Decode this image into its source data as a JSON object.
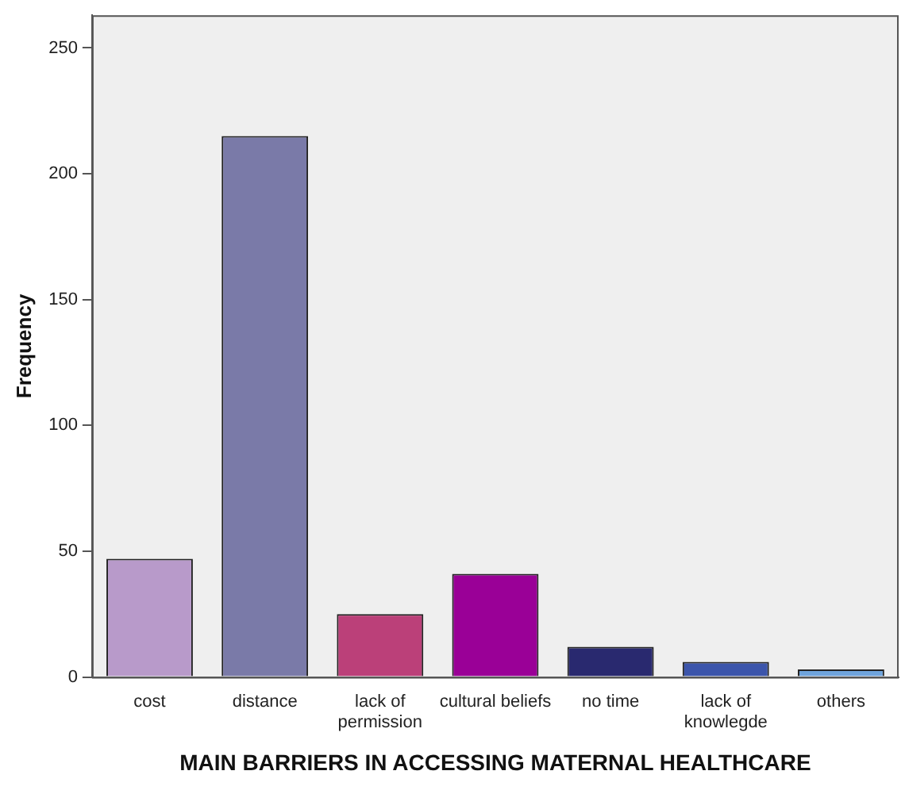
{
  "chart_data": {
    "type": "bar",
    "xlabel": "MAIN BARRIERS IN ACCESSING MATERNAL HEALTHCARE",
    "ylabel": "Frequency",
    "categories": [
      "cost",
      "distance",
      "lack of permission",
      "cultural beliefs",
      "no time",
      "lack of knowlegde",
      "others"
    ],
    "values": [
      47,
      215,
      25,
      41,
      12,
      6,
      3
    ],
    "colors": [
      "#b89aca",
      "#7a7aa8",
      "#bb4079",
      "#9a0097",
      "#29296f",
      "#3c55ab",
      "#6fa4dc"
    ],
    "ylim": [
      0,
      263
    ],
    "yticks": [
      0,
      50,
      100,
      150,
      200,
      250
    ],
    "grid": false,
    "legend": false
  }
}
